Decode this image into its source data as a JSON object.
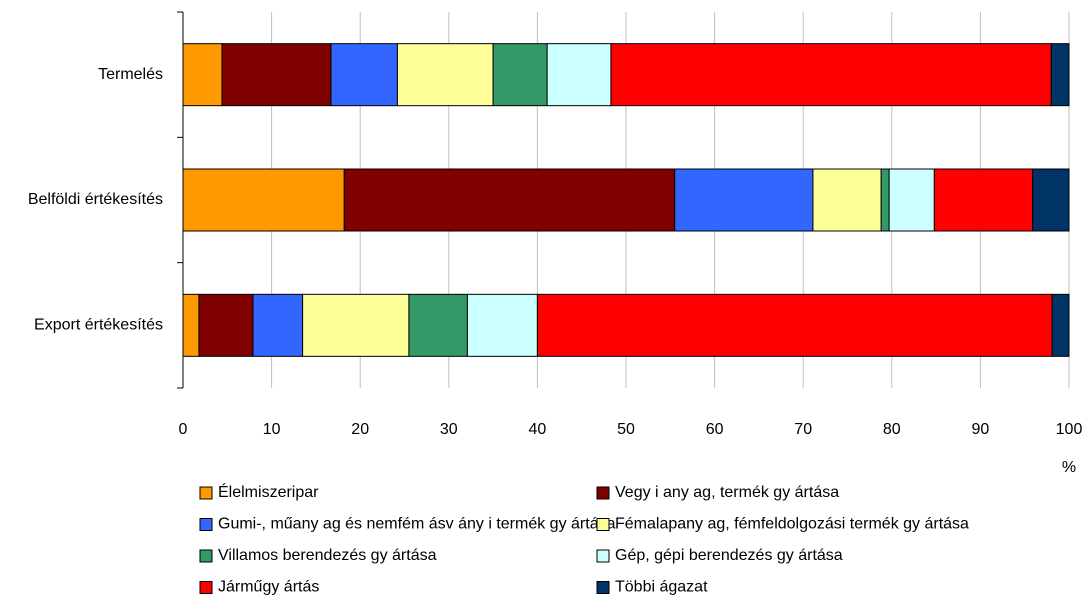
{
  "chart_data": {
    "type": "stacked_barh",
    "categories": [
      "Termelés",
      "Belföldi értékesítés",
      "Export értékesítés"
    ],
    "series": [
      {
        "name": "Élelmiszeripar",
        "color": "#ff9900",
        "values": [
          4.4,
          18.2,
          1.8
        ]
      },
      {
        "name": "Vegy i any ag, termék gy ártása",
        "color": "#800000",
        "values": [
          12.3,
          37.3,
          6.1
        ]
      },
      {
        "name": "Gumi-, műany ag és nemfém ásv ány i termék gy ártása",
        "color": "#3366ff",
        "values": [
          7.5,
          15.6,
          5.6
        ]
      },
      {
        "name": "Fémalapany ag, fémfeldolgozási termék gy ártása",
        "color": "#ffff99",
        "values": [
          10.8,
          7.7,
          12.0
        ]
      },
      {
        "name": "Villamos berendezés gy ártása",
        "color": "#339966",
        "values": [
          6.1,
          0.9,
          6.6
        ]
      },
      {
        "name": "Gép, gépi berendezés gy ártása",
        "color": "#ccffff",
        "values": [
          7.2,
          5.1,
          7.9
        ]
      },
      {
        "name": "Járműgy ártás",
        "color": "#ff0000",
        "values": [
          49.7,
          11.1,
          58.1
        ]
      },
      {
        "name": "Többi ágazat",
        "color": "#003366",
        "values": [
          2.0,
          4.1,
          1.9
        ]
      }
    ],
    "x_label": "%",
    "xlim": [
      0,
      100
    ],
    "xticks": [
      0,
      10,
      20,
      30,
      40,
      50,
      60,
      70,
      80,
      90,
      100
    ],
    "grid": true
  }
}
